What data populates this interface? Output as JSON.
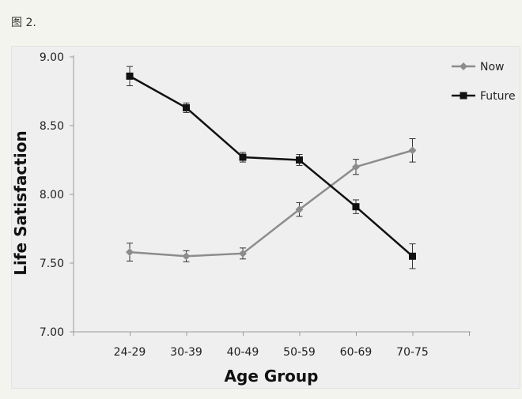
{
  "caption": "图 2.",
  "chart_data": {
    "type": "line",
    "categories": [
      "24-29",
      "30-39",
      "40-49",
      "50-59",
      "60-69",
      "70-75"
    ],
    "xlabel": "Age Group",
    "ylabel": "Life Satisfaction",
    "ylim": [
      7.0,
      9.0
    ],
    "yticks": [
      "7.00",
      "7.50",
      "8.00",
      "8.50",
      "9.00"
    ],
    "grid": false,
    "legend_position": "top-right",
    "series": [
      {
        "name": "Now",
        "marker": "diamond",
        "color": "#8c8c8c",
        "values": [
          7.58,
          7.55,
          7.57,
          7.89,
          8.2,
          8.32
        ],
        "error": [
          0.065,
          0.04,
          0.04,
          0.05,
          0.055,
          0.085
        ]
      },
      {
        "name": "Future",
        "marker": "square",
        "color": "#111111",
        "values": [
          8.86,
          8.63,
          8.27,
          8.25,
          7.91,
          7.55
        ],
        "error": [
          0.07,
          0.035,
          0.035,
          0.04,
          0.05,
          0.09
        ]
      }
    ]
  }
}
